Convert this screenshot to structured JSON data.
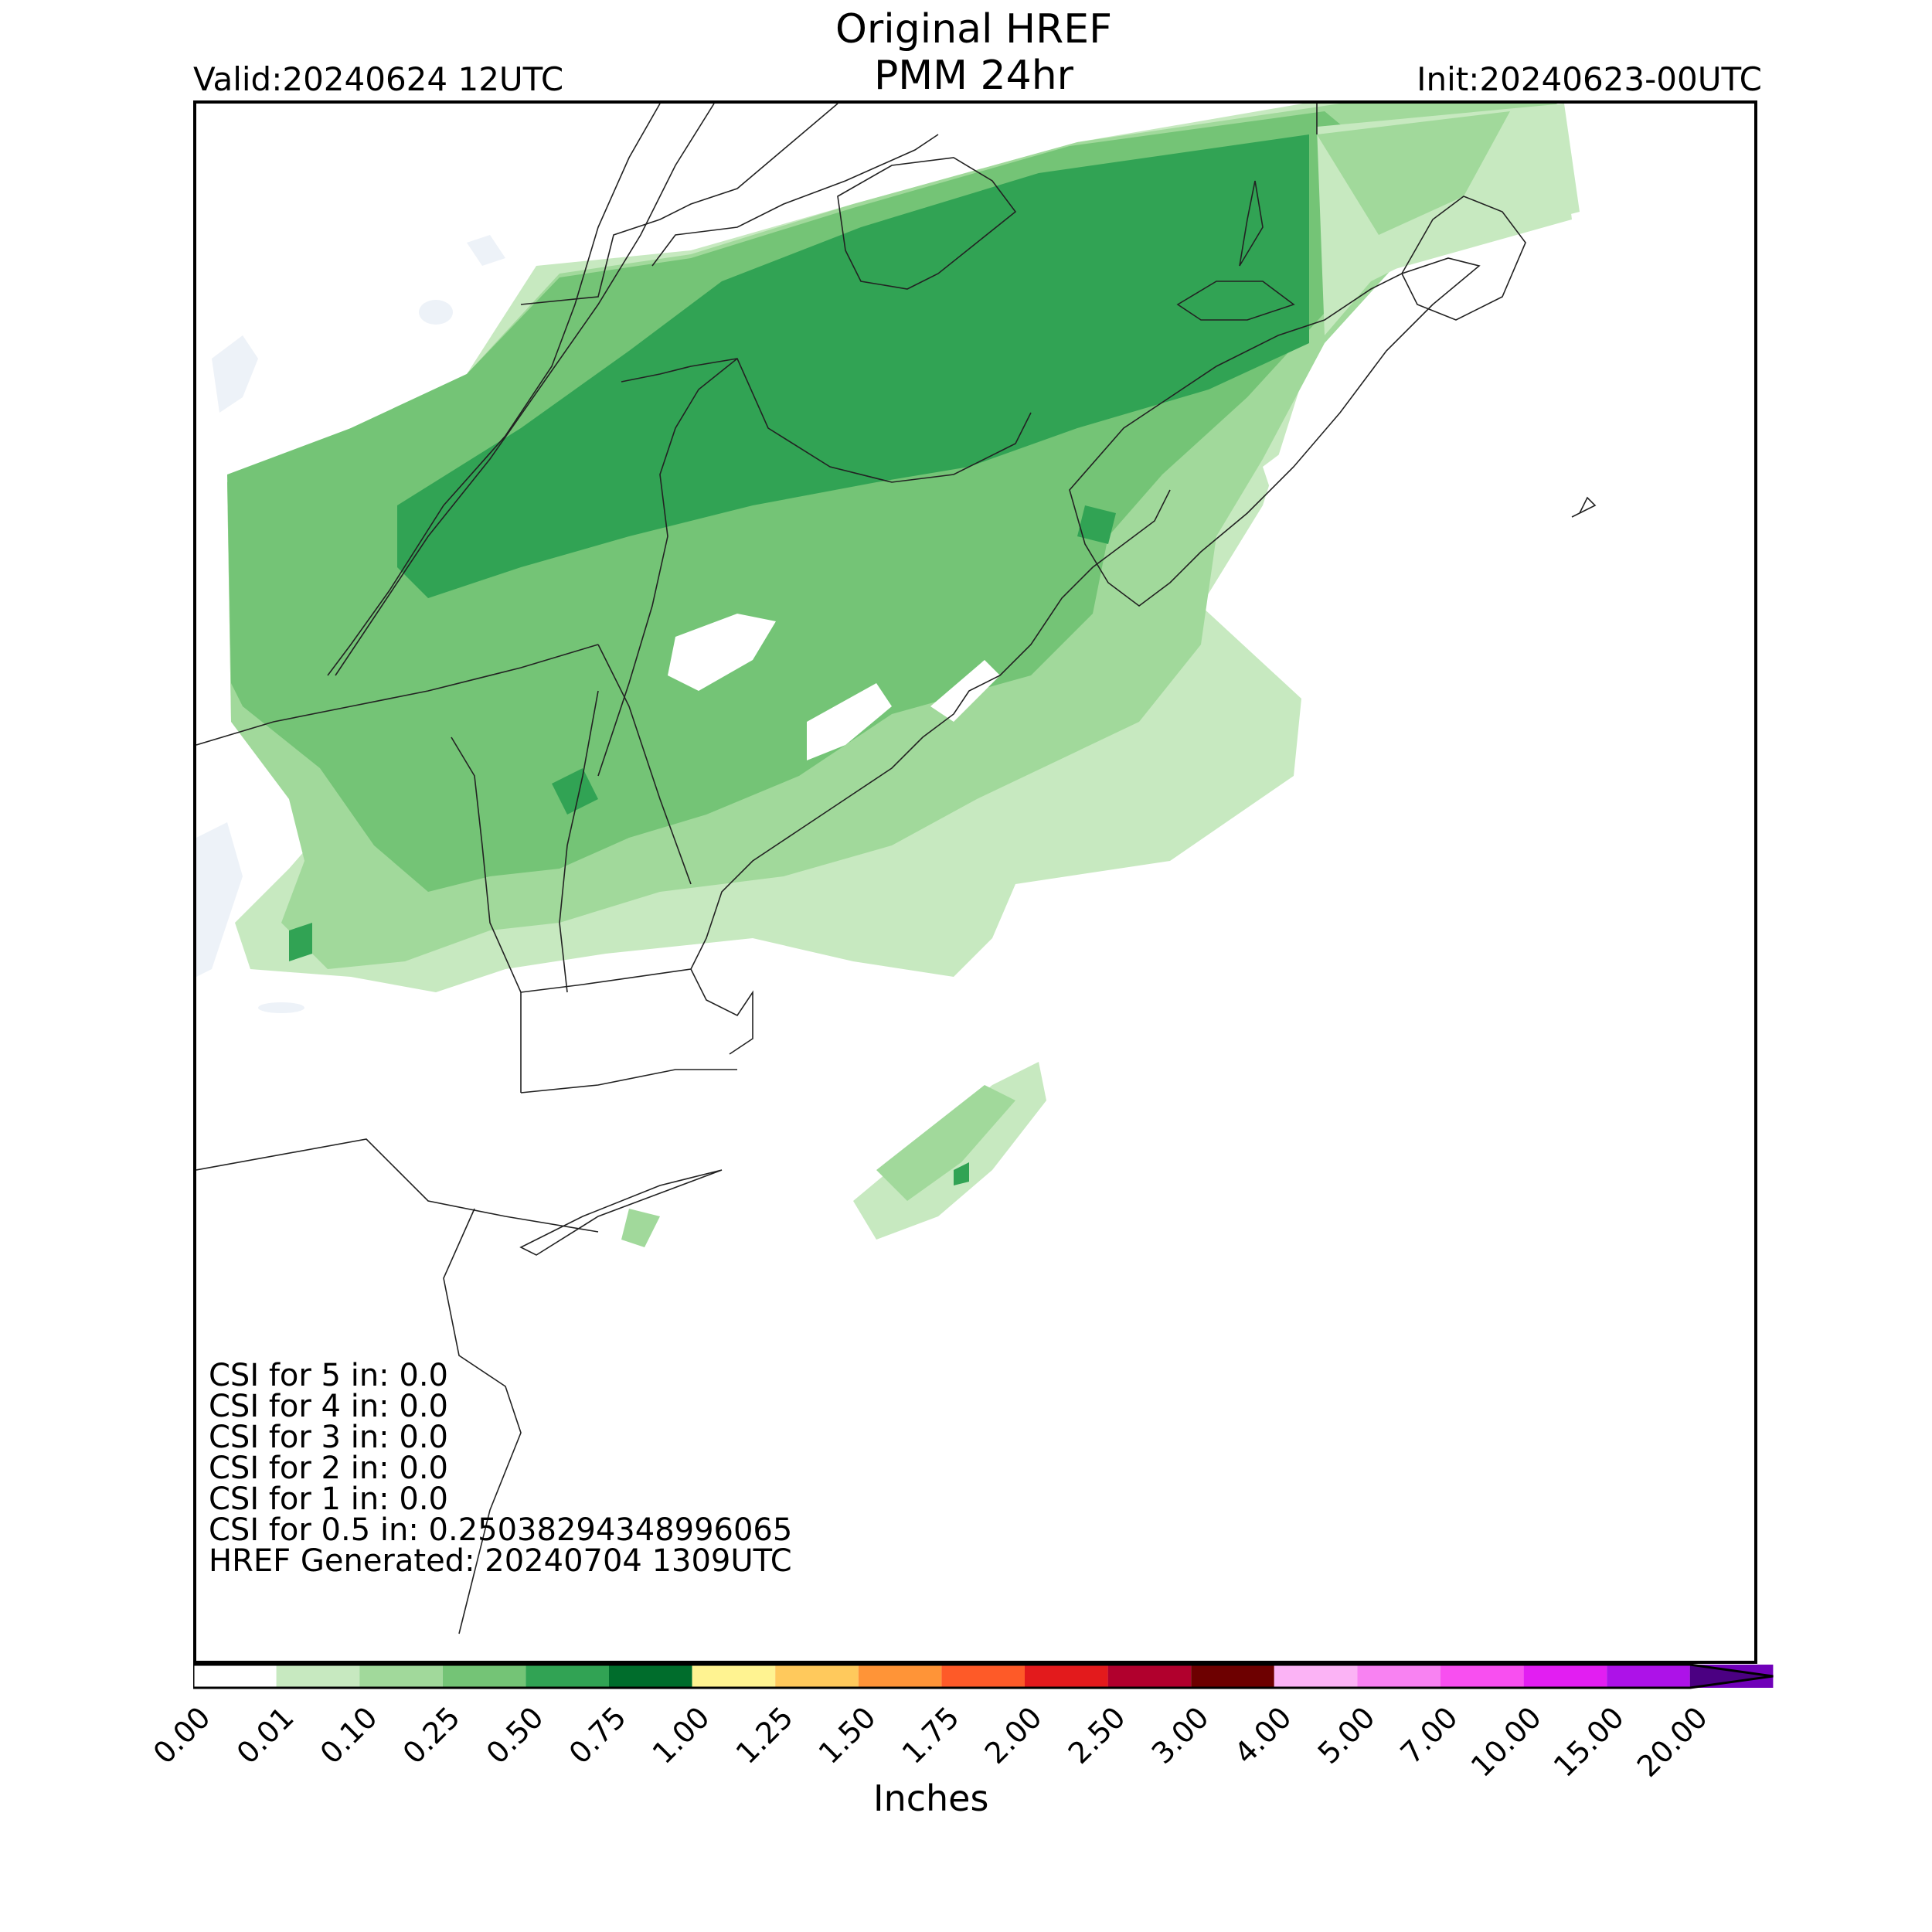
{
  "header": {
    "title_line1": "Original HREF",
    "title_line2": "PMM 24hr",
    "valid": "Valid:20240624 12UTC",
    "init": "Init:20240623-00UTC"
  },
  "stats": [
    "CSI for 5 in: 0.0",
    "CSI for 4 in: 0.0",
    "CSI for 3 in: 0.0",
    "CSI for 2 in: 0.0",
    "CSI for 1 in: 0.0",
    "CSI for 0.5 in: 0.25038294348996065",
    "HREF Generated: 20240704 1309UTC"
  ],
  "colorbar": {
    "label": "Inches",
    "ticks": [
      "0.00",
      "0.01",
      "0.10",
      "0.25",
      "0.50",
      "0.75",
      "1.00",
      "1.25",
      "1.50",
      "1.75",
      "2.00",
      "2.50",
      "3.00",
      "4.00",
      "5.00",
      "7.00",
      "10.00",
      "15.00",
      "20.00"
    ],
    "colors": [
      "#ffffff",
      "#c7e9c0",
      "#a1d99b",
      "#74c476",
      "#31a354",
      "#006d2c",
      "#fff391",
      "#ffc95c",
      "#ff9437",
      "#fe5a28",
      "#e31a1c",
      "#b1002d",
      "#6d0000",
      "#fbb3f5",
      "#f882f2",
      "#f84ff0",
      "#e21ef2",
      "#ad12e8",
      "#7000b9"
    ],
    "extend_color": "#4b0082"
  },
  "map": {
    "precip_colors": {
      "lt_0_10": "#c7e9c0",
      "0_10_to_0_25": "#a1d99b",
      "0_25_to_0_50": "#74c476",
      "0_50_to_0_75": "#31a354"
    },
    "water_color": "#edf2f8",
    "line_color": "#222222"
  }
}
